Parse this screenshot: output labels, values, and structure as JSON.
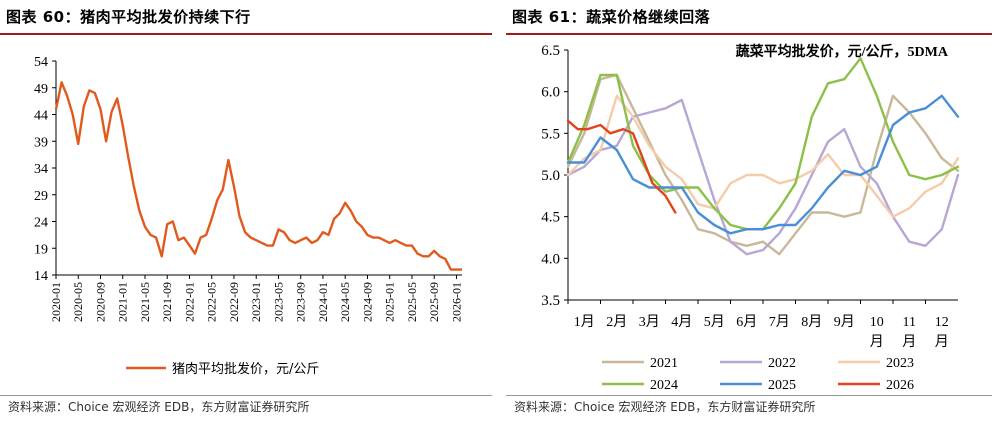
{
  "colors": {
    "title_rule": "#9e1c1c",
    "pork": "#e05a1e",
    "s2021": "#c8b898",
    "s2022": "#b8a6d4",
    "s2023": "#f5ccaa",
    "s2024": "#8dc04a",
    "s2025": "#4a8ed8",
    "s2026": "#e0441e"
  },
  "left": {
    "title": "图表 60：猪肉平均批发价持续下行",
    "source": "资料来源：Choice 宏观经济 EDB，东方财富证券研究所"
  },
  "right": {
    "title": "图表 61：蔬菜价格继续回落",
    "source": "资料来源：Choice 宏观经济 EDB，东方财富证券研究所"
  },
  "chart_data": [
    {
      "type": "line",
      "title": "",
      "ylim": [
        14,
        54
      ],
      "yticks": [
        14,
        19,
        24,
        29,
        34,
        39,
        44,
        49,
        54
      ],
      "xticks": [
        "2020-01",
        "2020-05",
        "2020-09",
        "2021-01",
        "2021-05",
        "2021-09",
        "2022-01",
        "2022-05",
        "2022-09",
        "2023-01",
        "2023-05",
        "2023-09",
        "2024-01",
        "2024-05",
        "2024-09",
        "2025-01",
        "2025-05",
        "2025-09",
        "2026-01"
      ],
      "x_range": [
        "2020-01",
        "2026-02"
      ],
      "series": [
        {
          "name": "猪肉平均批发价，元/公斤",
          "x": [
            "2020-01",
            "2020-02",
            "2020-03",
            "2020-04",
            "2020-05",
            "2020-06",
            "2020-07",
            "2020-08",
            "2020-09",
            "2020-10",
            "2020-11",
            "2020-12",
            "2021-01",
            "2021-02",
            "2021-03",
            "2021-04",
            "2021-05",
            "2021-06",
            "2021-07",
            "2021-08",
            "2021-09",
            "2021-10",
            "2021-11",
            "2021-12",
            "2022-01",
            "2022-02",
            "2022-03",
            "2022-04",
            "2022-05",
            "2022-06",
            "2022-07",
            "2022-08",
            "2022-09",
            "2022-10",
            "2022-11",
            "2022-12",
            "2023-01",
            "2023-02",
            "2023-03",
            "2023-04",
            "2023-05",
            "2023-06",
            "2023-07",
            "2023-08",
            "2023-09",
            "2023-10",
            "2023-11",
            "2023-12",
            "2024-01",
            "2024-02",
            "2024-03",
            "2024-04",
            "2024-05",
            "2024-06",
            "2024-07",
            "2024-08",
            "2024-09",
            "2024-10",
            "2024-11",
            "2024-12",
            "2025-01",
            "2025-02",
            "2025-03",
            "2025-04",
            "2025-05",
            "2025-06",
            "2025-07",
            "2025-08",
            "2025-09",
            "2025-10",
            "2025-11",
            "2025-12",
            "2026-01",
            "2026-02"
          ],
          "values": [
            45.0,
            50.0,
            47.5,
            44.0,
            38.5,
            45.5,
            48.5,
            48.0,
            45.0,
            39.0,
            44.5,
            47.0,
            42.0,
            36.0,
            30.5,
            26.0,
            23.0,
            21.5,
            21.0,
            17.5,
            23.5,
            24.0,
            20.5,
            21.0,
            19.5,
            18.0,
            21.0,
            21.5,
            24.5,
            28.0,
            30.0,
            35.5,
            30.5,
            25.0,
            22.0,
            21.0,
            20.5,
            20.0,
            19.5,
            19.5,
            22.5,
            22.0,
            20.5,
            20.0,
            20.5,
            21.0,
            20.0,
            20.5,
            22.0,
            21.5,
            24.5,
            25.5,
            27.5,
            26.0,
            24.0,
            23.0,
            21.5,
            21.0,
            21.0,
            20.5,
            20.0,
            20.5,
            20.0,
            19.5,
            19.5,
            18.0,
            17.5,
            17.5,
            18.5,
            17.5,
            17.0,
            15.0,
            15.0,
            15.0
          ]
        }
      ]
    },
    {
      "type": "line",
      "title": "蔬菜平均批发价，元/公斤，5DMA",
      "ylim": [
        3.5,
        6.5
      ],
      "yticks": [
        "3.5",
        "4.0",
        "4.5",
        "5.0",
        "5.5",
        "6.0",
        "6.5"
      ],
      "xticks": [
        "1月",
        "2月",
        "3月",
        "4月",
        "5月",
        "6月",
        "7月",
        "8月",
        "9月",
        "10月",
        "11月",
        "12月"
      ],
      "x_range": [
        1,
        13
      ],
      "series": [
        {
          "name": "2021",
          "x": [
            1,
            1.5,
            2,
            2.5,
            3,
            3.5,
            4,
            4.5,
            5,
            5.5,
            6,
            6.5,
            7,
            7.5,
            8,
            8.5,
            9,
            9.5,
            10,
            10.5,
            11,
            11.5,
            12,
            12.5,
            13
          ],
          "values": [
            5.1,
            5.5,
            6.15,
            6.2,
            5.8,
            5.4,
            5.0,
            4.7,
            4.35,
            4.3,
            4.2,
            4.15,
            4.2,
            4.05,
            4.3,
            4.55,
            4.55,
            4.5,
            4.55,
            5.3,
            5.95,
            5.75,
            5.5,
            5.2,
            5.05
          ]
        },
        {
          "name": "2022",
          "x": [
            1,
            1.5,
            2,
            2.5,
            3,
            3.5,
            4,
            4.5,
            5,
            5.5,
            6,
            6.5,
            7,
            7.5,
            8,
            8.5,
            9,
            9.5,
            10,
            10.5,
            11,
            11.5,
            12,
            12.5,
            13
          ],
          "values": [
            5.0,
            5.1,
            5.3,
            5.35,
            5.7,
            5.75,
            5.8,
            5.9,
            5.3,
            4.7,
            4.2,
            4.05,
            4.1,
            4.3,
            4.6,
            5.0,
            5.4,
            5.55,
            5.1,
            4.9,
            4.5,
            4.2,
            4.15,
            4.35,
            5.0
          ]
        },
        {
          "name": "2023",
          "x": [
            1,
            1.5,
            2,
            2.5,
            3,
            3.5,
            4,
            4.5,
            5,
            5.5,
            6,
            6.5,
            7,
            7.5,
            8,
            8.5,
            9,
            9.5,
            10,
            10.5,
            11,
            11.5,
            12,
            12.5,
            13
          ],
          "values": [
            5.0,
            5.2,
            5.3,
            5.95,
            5.7,
            5.35,
            5.1,
            4.95,
            4.65,
            4.6,
            4.9,
            5.0,
            5.0,
            4.9,
            4.95,
            5.05,
            5.25,
            5.0,
            5.0,
            4.75,
            4.5,
            4.6,
            4.8,
            4.9,
            5.2
          ]
        },
        {
          "name": "2024",
          "x": [
            1,
            1.5,
            2,
            2.5,
            3,
            3.5,
            4,
            4.5,
            5,
            5.5,
            6,
            6.5,
            7,
            7.5,
            8,
            8.5,
            9,
            9.5,
            10,
            10.5,
            11,
            11.5,
            12,
            12.5,
            13
          ],
          "values": [
            5.15,
            5.6,
            6.2,
            6.2,
            5.35,
            5.0,
            4.8,
            4.85,
            4.85,
            4.6,
            4.4,
            4.35,
            4.35,
            4.6,
            4.9,
            5.7,
            6.1,
            6.15,
            6.4,
            5.95,
            5.4,
            5.0,
            4.95,
            5.0,
            5.1
          ]
        },
        {
          "name": "2025",
          "x": [
            1,
            1.5,
            2,
            2.5,
            3,
            3.5,
            4,
            4.5,
            5,
            5.5,
            6,
            6.5,
            7,
            7.5,
            8,
            8.5,
            9,
            9.5,
            10,
            10.5,
            11,
            11.5,
            12,
            12.5,
            13
          ],
          "values": [
            5.15,
            5.15,
            5.45,
            5.3,
            4.95,
            4.85,
            4.85,
            4.85,
            4.55,
            4.4,
            4.3,
            4.35,
            4.35,
            4.4,
            4.4,
            4.6,
            4.85,
            5.05,
            5.0,
            5.1,
            5.6,
            5.75,
            5.8,
            5.95,
            5.7
          ]
        },
        {
          "name": "2026",
          "x": [
            1,
            1.3,
            1.6,
            2,
            2.3,
            2.7,
            3,
            3.3,
            3.6,
            4,
            4.3
          ],
          "values": [
            5.65,
            5.55,
            5.55,
            5.6,
            5.5,
            5.55,
            5.5,
            5.2,
            4.9,
            4.75,
            4.55
          ]
        }
      ]
    }
  ]
}
